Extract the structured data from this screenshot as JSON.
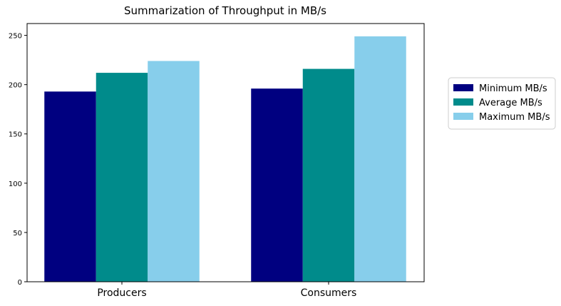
{
  "chart_data": {
    "type": "bar",
    "title": "Summarization of Throughput in MB/s",
    "xlabel": "",
    "ylabel": "",
    "categories": [
      "Producers",
      "Consumers"
    ],
    "series": [
      {
        "name": "Minimum MB/s",
        "color": "#000080",
        "values": [
          193,
          196
        ]
      },
      {
        "name": "Average MB/s",
        "color": "#008b8b",
        "values": [
          212,
          216
        ]
      },
      {
        "name": "Maximum MB/s",
        "color": "#87ceeb",
        "values": [
          224,
          249
        ]
      }
    ],
    "ylim": [
      0,
      262
    ],
    "yticks": [
      0,
      50,
      100,
      150,
      200,
      250
    ],
    "grid": false,
    "legend": {
      "placement": "right"
    }
  }
}
